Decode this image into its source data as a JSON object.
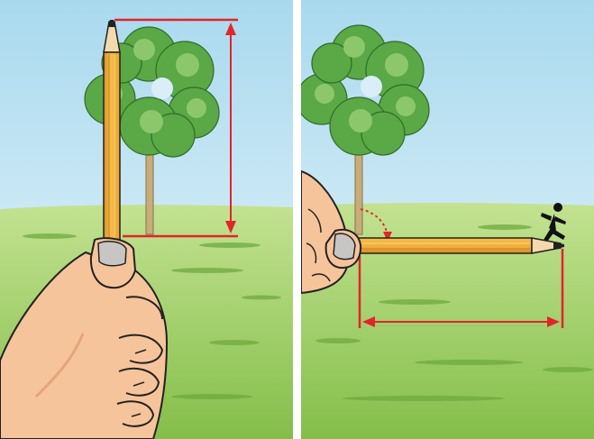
{
  "scene": {
    "panels": [
      {
        "name": "measure-tree-height-panel",
        "pencil_orientation": "vertical"
      },
      {
        "name": "rotate-pencil-panel",
        "pencil_orientation": "horizontal"
      }
    ],
    "icons": [
      "tree-icon",
      "pencil-icon",
      "hand-icon",
      "double-arrow-icon",
      "curved-rotate-arrow-icon",
      "running-person-icon"
    ],
    "colors": {
      "sky_top": "#a9d9ee",
      "sky_bottom": "#eaf6fb",
      "grass_top": "#b9dd86",
      "grass_bottom": "#86c04c",
      "grass_dark": "#5f9e35",
      "tree_foliage": "#5aa846",
      "tree_foliage_light": "#8cc86b",
      "tree_trunk": "#c7ad7a",
      "pencil_body": "#f4b63f",
      "pencil_tip_wood": "#f3d9ad",
      "pencil_lead": "#222222",
      "skin": "#f6c49b",
      "skin_shadow": "#e6a47c",
      "nail": "#c8c6c4",
      "outline": "#222222",
      "measure_red": "#e3242b",
      "divider": "#ffffff"
    }
  }
}
